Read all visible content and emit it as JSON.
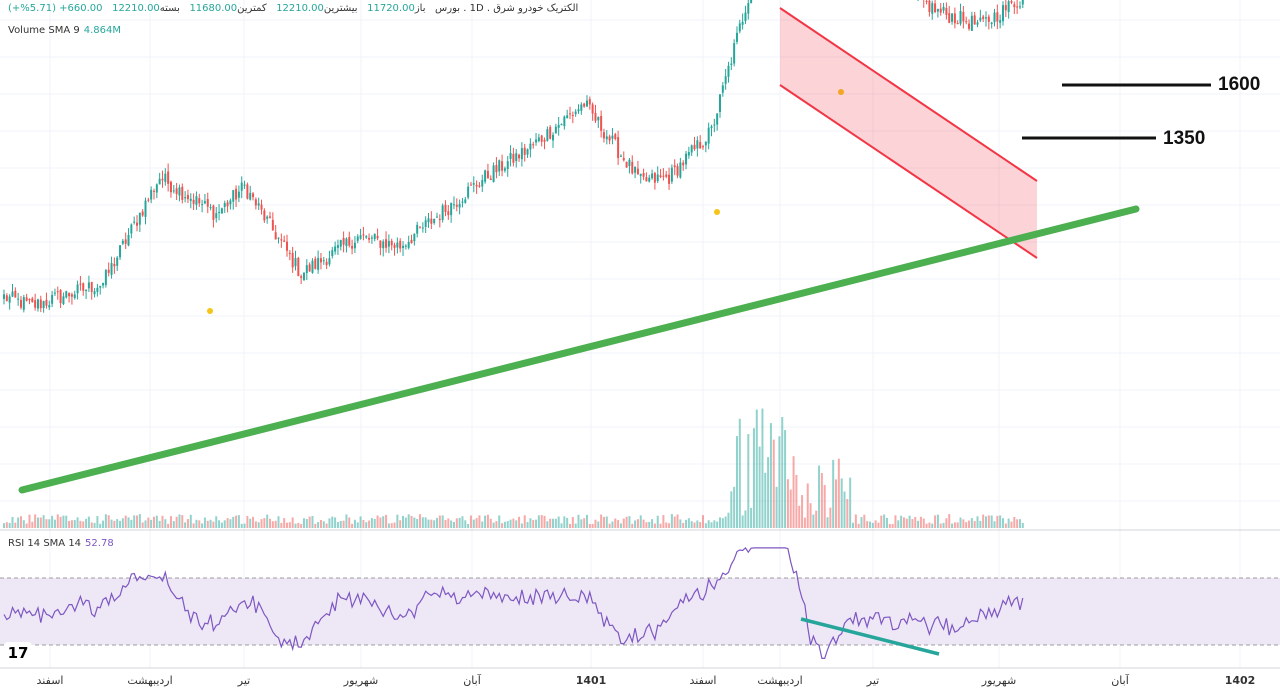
{
  "header": {
    "symbol_line": "الکتریک خودرو شرق",
    "exchange": "بورس",
    "interval": "1D",
    "open_label": "باز",
    "open": "11720.00",
    "high_label": "بیشترین",
    "high": "12210.00",
    "low_label": "کمترین",
    "low": "11680.00",
    "close_label": "بسته",
    "close": "12210.00",
    "change": "660.00+ (5.71%+)"
  },
  "volume_indicator": {
    "label": "Volume SMA 9",
    "value": "4.864M"
  },
  "rsi_indicator": {
    "label": "RSI 14 SMA 14",
    "value": "52.78"
  },
  "x_axis_ticks": [
    "اسفند",
    "اردیبهشت",
    "تیر",
    "شهریور",
    "آبان",
    "1401",
    "اسفند",
    "اردیبهشت",
    "تیر",
    "شهریور",
    "آبان",
    "1402"
  ],
  "price_levels": [
    "1600",
    "1350"
  ],
  "logo_text": "17",
  "colors": {
    "up": "#26a69a",
    "down": "#ef5350",
    "trendline": "#4caf50",
    "channel": "#f23645",
    "rsi_line": "#7e57c2",
    "rsi_band": "#ede7f6",
    "divergence": "#26a69a"
  },
  "chart_data": {
    "type": "candlestick",
    "timeframe": "1D",
    "close_anchors": [
      {
        "x": 0,
        "close": 0.42
      },
      {
        "x": 10,
        "close": 0.4
      },
      {
        "x": 35,
        "close": 0.45
      },
      {
        "x": 55,
        "close": 0.68
      },
      {
        "x": 75,
        "close": 0.6
      },
      {
        "x": 85,
        "close": 0.66
      },
      {
        "x": 105,
        "close": 0.47
      },
      {
        "x": 125,
        "close": 0.55
      },
      {
        "x": 140,
        "close": 0.53
      },
      {
        "x": 170,
        "close": 0.68
      },
      {
        "x": 185,
        "close": 0.74
      },
      {
        "x": 205,
        "close": 0.84
      },
      {
        "x": 225,
        "close": 0.67
      },
      {
        "x": 235,
        "close": 0.68
      },
      {
        "x": 250,
        "close": 0.78
      },
      {
        "x": 262,
        "close": 1.05
      },
      {
        "x": 272,
        "close": 1.28
      },
      {
        "x": 276,
        "close": 1.36
      },
      {
        "x": 285,
        "close": 1.17
      },
      {
        "x": 300,
        "close": 1.13
      },
      {
        "x": 310,
        "close": 1.12
      },
      {
        "x": 330,
        "close": 1.04
      },
      {
        "x": 345,
        "close": 1.01
      },
      {
        "x": 360,
        "close": 1.07
      }
    ],
    "rsi": {
      "period": 14,
      "upper_level": 70,
      "lower_level": 30,
      "last": 52.78
    },
    "annotations": [
      "rising support trendline",
      "descending channel",
      "bullish RSI divergence"
    ]
  }
}
